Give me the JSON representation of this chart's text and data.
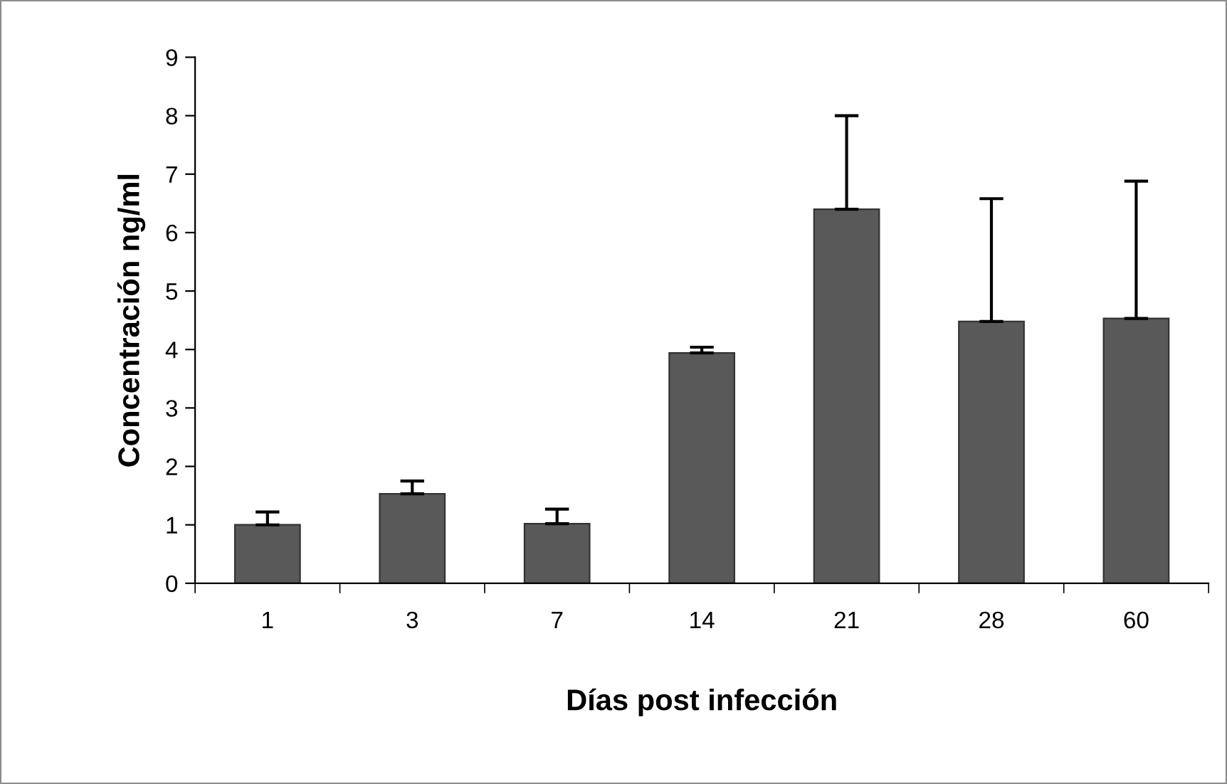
{
  "chart_data": {
    "type": "bar",
    "xlabel": "Días post infección",
    "ylabel": "Concentración ng/ml",
    "categories": [
      "1",
      "3",
      "7",
      "14",
      "21",
      "28",
      "60"
    ],
    "values": [
      1.0,
      1.53,
      1.02,
      3.94,
      6.4,
      4.48,
      4.53
    ],
    "errors": [
      [
        1.0,
        1.22
      ],
      [
        1.53,
        1.75
      ],
      [
        1.02,
        1.27
      ],
      [
        3.94,
        4.04
      ],
      [
        6.4,
        8.0
      ],
      [
        4.48,
        6.58
      ],
      [
        4.53,
        6.88
      ]
    ],
    "color": "#595959",
    "ylim": [
      0,
      9
    ],
    "yticks": [
      0,
      1,
      2,
      3,
      4,
      5,
      6,
      7,
      8,
      9
    ],
    "grid": false,
    "legend": false
  }
}
